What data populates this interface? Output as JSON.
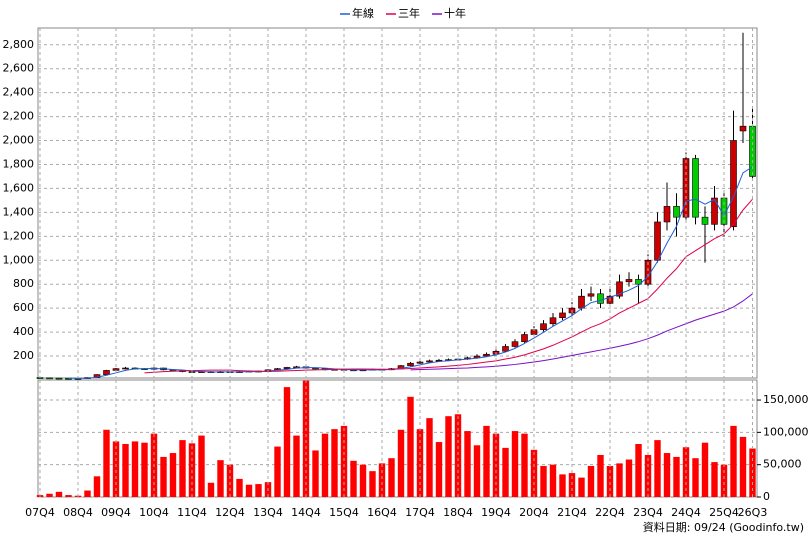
{
  "chart_data": [
    {
      "type": "candlestick",
      "legend_position": "top",
      "up_color": "#cc0000",
      "down_color": "#00cc00",
      "ylim": [
        0,
        2940
      ],
      "yticks": [
        200,
        400,
        600,
        800,
        {
          "value": 1000,
          "label": "1,000"
        },
        {
          "value": 1200,
          "label": "1,200"
        },
        {
          "value": 1400,
          "label": "1,400"
        },
        {
          "value": 1600,
          "label": "1,600"
        },
        {
          "value": 1800,
          "label": "1,800"
        },
        {
          "value": 2000,
          "label": "2,000"
        },
        {
          "value": 2200,
          "label": "2,200"
        },
        {
          "value": 2400,
          "label": "2,400"
        },
        {
          "value": 2600,
          "label": "2,600"
        },
        {
          "value": 2800,
          "label": "2,800"
        }
      ],
      "grid": true,
      "open": [
        20,
        18,
        16,
        15,
        14,
        12,
        20,
        45,
        80,
        95,
        100,
        95,
        90,
        100,
        85,
        80,
        70,
        65,
        70,
        65,
        70,
        65,
        70,
        75,
        70,
        85,
        95,
        105,
        110,
        100,
        95,
        85,
        90,
        85,
        80,
        85,
        90,
        85,
        95,
        120,
        140,
        150,
        160,
        165,
        170,
        175,
        185,
        200,
        215,
        240,
        280,
        320,
        380,
        420,
        470,
        520,
        560,
        600,
        700,
        720,
        640,
        700,
        820,
        840,
        800,
        1000,
        1320,
        1450,
        1360,
        1850,
        1360,
        1300,
        1520,
        1280,
        2080,
        2120
      ],
      "high": [
        22,
        19,
        17,
        16,
        15,
        22,
        48,
        85,
        100,
        110,
        105,
        100,
        105,
        102,
        90,
        84,
        74,
        75,
        73,
        75,
        72,
        74,
        80,
        78,
        90,
        100,
        110,
        118,
        112,
        102,
        98,
        95,
        92,
        88,
        90,
        95,
        92,
        100,
        125,
        150,
        160,
        170,
        175,
        180,
        185,
        195,
        215,
        230,
        255,
        300,
        340,
        400,
        450,
        500,
        560,
        600,
        650,
        760,
        780,
        760,
        760,
        880,
        900,
        880,
        1050,
        1400,
        1650,
        1560,
        1900,
        1880,
        1450,
        1620,
        1560,
        2250,
        2900,
        2280
      ],
      "low": [
        16,
        15,
        14,
        12,
        10,
        11,
        19,
        42,
        75,
        90,
        88,
        85,
        86,
        80,
        75,
        65,
        60,
        62,
        60,
        62,
        60,
        62,
        66,
        66,
        68,
        82,
        90,
        100,
        95,
        90,
        80,
        82,
        80,
        76,
        78,
        82,
        80,
        82,
        92,
        115,
        132,
        145,
        152,
        158,
        162,
        168,
        178,
        192,
        205,
        232,
        270,
        310,
        365,
        405,
        450,
        500,
        540,
        580,
        660,
        600,
        620,
        680,
        780,
        640,
        780,
        980,
        1250,
        1200,
        1340,
        1300,
        980,
        1250,
        1200,
        1250,
        1980,
        1680
      ],
      "close": [
        18,
        16,
        15,
        14,
        12,
        20,
        45,
        80,
        95,
        100,
        95,
        90,
        100,
        85,
        80,
        70,
        65,
        70,
        65,
        70,
        65,
        70,
        75,
        70,
        85,
        95,
        105,
        110,
        100,
        95,
        85,
        90,
        85,
        80,
        85,
        90,
        85,
        95,
        120,
        140,
        150,
        160,
        165,
        170,
        175,
        185,
        200,
        215,
        240,
        280,
        320,
        380,
        420,
        470,
        520,
        560,
        600,
        700,
        720,
        640,
        700,
        820,
        840,
        800,
        1000,
        1320,
        1450,
        1360,
        1850,
        1360,
        1300,
        1520,
        1300,
        2000,
        2120,
        1700
      ],
      "series": [
        {
          "name": "年線",
          "color": "#1f5fd6",
          "values": [
            null,
            null,
            null,
            16,
            14,
            15,
            23,
            40,
            60,
            80,
            93,
            95,
            96,
            93,
            88,
            84,
            75,
            71,
            67,
            68,
            68,
            68,
            70,
            70,
            75,
            81,
            89,
            99,
            103,
            103,
            99,
            93,
            89,
            85,
            85,
            85,
            85,
            89,
            98,
            110,
            126,
            143,
            154,
            161,
            168,
            174,
            183,
            194,
            210,
            234,
            264,
            305,
            350,
            398,
            448,
            493,
            538,
            596,
            646,
            666,
            690,
            720,
            750,
            790,
            865,
            990,
            1143,
            1283,
            1495,
            1510,
            1468,
            1508,
            1370,
            1530,
            1730,
            1780
          ]
        },
        {
          "name": "三年",
          "color": "#e0004a",
          "values": [
            null,
            null,
            null,
            null,
            null,
            null,
            null,
            null,
            null,
            null,
            null,
            60,
            65,
            70,
            73,
            76,
            78,
            80,
            82,
            82,
            82,
            78,
            75,
            73,
            72,
            73,
            76,
            79,
            82,
            85,
            87,
            89,
            91,
            92,
            92,
            91,
            90,
            90,
            92,
            96,
            100,
            105,
            110,
            116,
            122,
            130,
            140,
            150,
            160,
            175,
            190,
            210,
            235,
            260,
            290,
            325,
            360,
            400,
            440,
            470,
            510,
            560,
            600,
            640,
            680,
            760,
            850,
            930,
            1030,
            1080,
            1130,
            1180,
            1220,
            1300,
            1420,
            1510
          ]
        },
        {
          "name": "十年",
          "color": "#7a10c8",
          "values": [
            null,
            null,
            null,
            null,
            null,
            null,
            null,
            null,
            null,
            null,
            null,
            null,
            null,
            null,
            null,
            null,
            null,
            null,
            null,
            null,
            null,
            null,
            null,
            null,
            null,
            null,
            null,
            null,
            null,
            null,
            null,
            null,
            null,
            null,
            null,
            null,
            null,
            null,
            null,
            85,
            88,
            90,
            92,
            95,
            98,
            100,
            105,
            110,
            115,
            122,
            130,
            140,
            150,
            162,
            175,
            190,
            205,
            220,
            235,
            250,
            265,
            282,
            300,
            320,
            345,
            375,
            410,
            440,
            470,
            500,
            525,
            550,
            575,
            610,
            660,
            720
          ]
        }
      ]
    },
    {
      "type": "bar",
      "color": "#ff0000",
      "ylim": [
        0,
        181000
      ],
      "yticks": [
        0,
        {
          "value": 50000,
          "label": "50,000"
        },
        {
          "value": 100000,
          "label": "100,000"
        },
        {
          "value": 150000,
          "label": "150,000"
        }
      ],
      "grid": true,
      "categories": [
        "07Q4",
        null,
        null,
        null,
        "08Q4",
        null,
        null,
        null,
        "09Q4",
        null,
        null,
        null,
        "10Q4",
        null,
        null,
        null,
        "11Q4",
        null,
        null,
        null,
        "12Q4",
        null,
        null,
        null,
        "13Q4",
        null,
        null,
        null,
        "14Q4",
        null,
        null,
        null,
        "15Q4",
        null,
        null,
        null,
        "16Q4",
        null,
        null,
        null,
        "17Q4",
        null,
        null,
        null,
        "18Q4",
        null,
        null,
        null,
        "19Q4",
        null,
        null,
        null,
        "20Q4",
        null,
        null,
        null,
        "21Q4",
        null,
        null,
        null,
        "22Q4",
        null,
        null,
        null,
        "23Q4",
        null,
        null,
        null,
        "24Q4",
        null,
        null,
        null,
        "25Q4",
        null,
        null,
        "26Q3"
      ],
      "values": [
        3000,
        5000,
        8000,
        3000,
        2000,
        10000,
        32000,
        104000,
        86000,
        82000,
        86000,
        84000,
        98000,
        62000,
        68000,
        88000,
        83000,
        95000,
        22000,
        57000,
        50000,
        28000,
        19000,
        20000,
        23000,
        78000,
        170000,
        95000,
        180000,
        72000,
        98000,
        105000,
        110000,
        56000,
        50000,
        40000,
        52000,
        60000,
        104000,
        155000,
        105000,
        122000,
        85000,
        125000,
        128000,
        102000,
        80000,
        110000,
        98000,
        76000,
        102000,
        98000,
        73000,
        48000,
        50000,
        35000,
        37000,
        30000,
        48000,
        65000,
        48000,
        52000,
        58000,
        82000,
        65000,
        88000,
        68000,
        62000,
        77000,
        60000,
        84000,
        54000,
        50000,
        110000,
        93000,
        75000
      ],
      "footer": "資料日期: 09/24 (Goodinfo.tw)"
    }
  ]
}
